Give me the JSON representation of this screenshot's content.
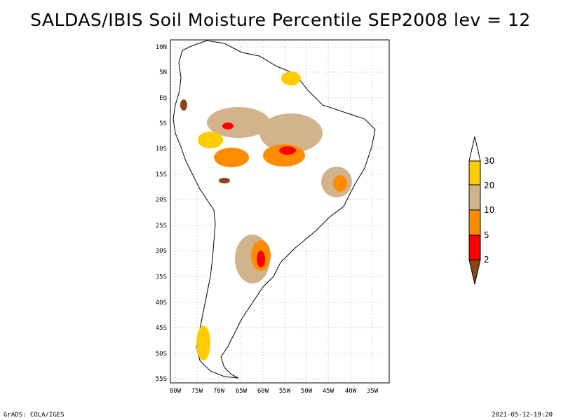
{
  "title": "SALDAS/IBIS Soil Moisture Percentile SEP2008 lev = 12",
  "map": {
    "lat_labels": [
      "10N",
      "5N",
      "EQ",
      "5S",
      "10S",
      "15S",
      "20S",
      "25S",
      "30S",
      "35S",
      "40S",
      "45S",
      "50S",
      "55S"
    ],
    "lon_labels": [
      "80W",
      "75W",
      "70W",
      "65W",
      "60W",
      "55W",
      "50W",
      "45W",
      "40W",
      "35W"
    ],
    "grid": true
  },
  "legend": {
    "labels": [
      "30",
      "20",
      "10",
      "5",
      "2"
    ],
    "colors": {
      "above30": "#ffffff",
      "20-30": "#ffcc00",
      "10-20": "#d2b48c",
      "5-10": "#ff8c00",
      "2-5": "#ff0000",
      "below2": "#8b4513"
    }
  },
  "footer": {
    "left": "GrADS: COLA/IGES",
    "right": "2021-05-12-19:20"
  }
}
